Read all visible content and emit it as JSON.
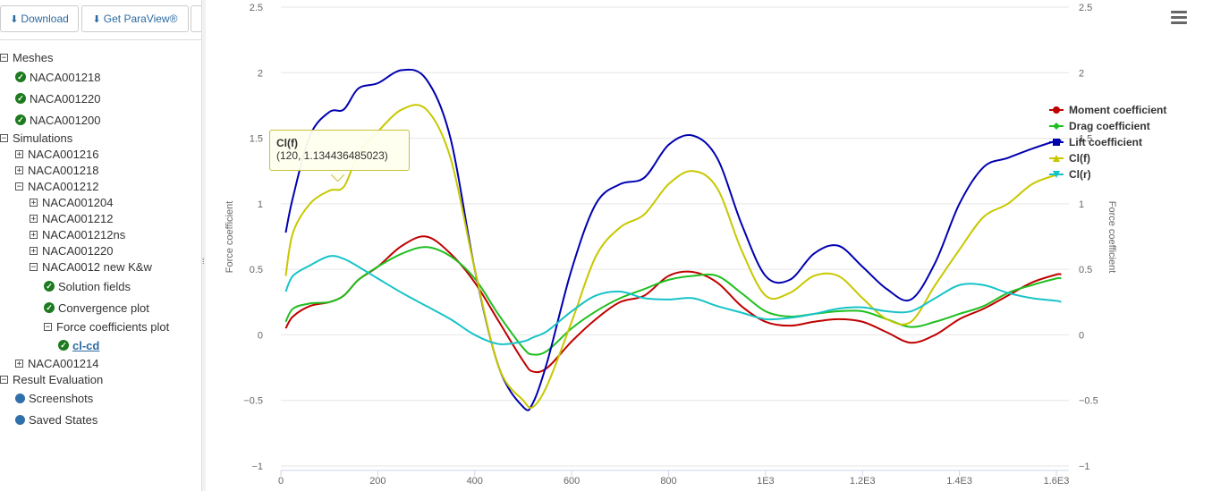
{
  "toolbar": {
    "download_label": "Download",
    "paraview_label": "Get ParaView®"
  },
  "tree": {
    "meshes": "Meshes",
    "mesh_items": [
      "NACA001218",
      "NACA001220",
      "NACA001200"
    ],
    "simulations": "Simulations",
    "sim_items": [
      "NACA001216",
      "NACA001218",
      "NACA001212"
    ],
    "sub_items": [
      "NACA001204",
      "NACA001212",
      "NACA001212ns",
      "NACA001220",
      "NACA0012 new K&w"
    ],
    "solution_fields": "Solution fields",
    "convergence_plot": "Convergence plot",
    "force_coefficients_plot": "Force coefficients plot",
    "selected_leaf": "cl-cd",
    "sim_last": "NACA001214",
    "result_evaluation": "Result Evaluation",
    "screenshots": "Screenshots",
    "saved_states": "Saved States"
  },
  "chart_data": {
    "type": "line",
    "ylabel_left": "Force coefficient",
    "ylabel_right": "Force coefficient",
    "xlim": [
      0,
      1630
    ],
    "ylim": [
      -1,
      2.5
    ],
    "x_ticks": [
      0,
      200,
      400,
      600,
      800,
      1000,
      1200,
      1400,
      1600
    ],
    "x_tick_labels": [
      "0",
      "200",
      "400",
      "600",
      "800",
      "1E3",
      "1.2E3",
      "1.4E3",
      "1.6E3"
    ],
    "y_ticks": [
      -1,
      -0.5,
      0,
      0.5,
      1,
      1.5,
      2,
      2.5
    ],
    "y_tick_labels": [
      "−1",
      "−0.5",
      "0",
      "0.5",
      "1",
      "1.5",
      "2",
      "2.5"
    ],
    "grid": "horizontal",
    "legend_position": "right",
    "x": [
      10,
      25,
      60,
      100,
      130,
      160,
      200,
      250,
      300,
      350,
      400,
      450,
      500,
      520,
      550,
      600,
      650,
      700,
      750,
      800,
      850,
      900,
      950,
      1000,
      1050,
      1100,
      1150,
      1200,
      1250,
      1300,
      1350,
      1400,
      1450,
      1500,
      1550,
      1600,
      1610
    ],
    "series": [
      {
        "name": "Moment coefficient",
        "color": "#c00000",
        "values": [
          0.05,
          0.14,
          0.22,
          0.25,
          0.3,
          0.42,
          0.52,
          0.68,
          0.75,
          0.62,
          0.4,
          0.1,
          -0.2,
          -0.28,
          -0.25,
          -0.05,
          0.12,
          0.25,
          0.3,
          0.45,
          0.48,
          0.4,
          0.22,
          0.1,
          0.07,
          0.1,
          0.12,
          0.1,
          0.02,
          -0.06,
          0.0,
          0.12,
          0.2,
          0.3,
          0.4,
          0.46,
          0.46
        ]
      },
      {
        "name": "Drag coefficient",
        "color": "#1fbf1f",
        "values": [
          0.1,
          0.2,
          0.24,
          0.25,
          0.3,
          0.42,
          0.52,
          0.62,
          0.67,
          0.6,
          0.43,
          0.15,
          -0.1,
          -0.15,
          -0.12,
          0.05,
          0.18,
          0.28,
          0.35,
          0.42,
          0.45,
          0.45,
          0.32,
          0.18,
          0.14,
          0.16,
          0.18,
          0.18,
          0.12,
          0.06,
          0.1,
          0.16,
          0.22,
          0.32,
          0.38,
          0.43,
          0.43
        ]
      },
      {
        "name": "Lift coefficient",
        "color": "#0000b0",
        "values": [
          0.78,
          1.05,
          1.52,
          1.7,
          1.72,
          1.88,
          1.92,
          2.02,
          1.95,
          1.5,
          0.5,
          -0.25,
          -0.55,
          -0.52,
          -0.2,
          0.5,
          1.0,
          1.15,
          1.2,
          1.45,
          1.52,
          1.35,
          0.85,
          0.45,
          0.42,
          0.62,
          0.68,
          0.52,
          0.35,
          0.27,
          0.55,
          1.0,
          1.28,
          1.35,
          1.42,
          1.48,
          1.48
        ]
      },
      {
        "name": "Cl(f)",
        "color": "#c8c800",
        "values": [
          0.45,
          0.78,
          1.0,
          1.1,
          1.13,
          1.38,
          1.55,
          1.72,
          1.72,
          1.35,
          0.5,
          -0.25,
          -0.5,
          -0.55,
          -0.38,
          0.1,
          0.6,
          0.82,
          0.92,
          1.15,
          1.25,
          1.12,
          0.65,
          0.3,
          0.32,
          0.45,
          0.45,
          0.28,
          0.12,
          0.1,
          0.38,
          0.65,
          0.9,
          1.0,
          1.15,
          1.22,
          1.22
        ]
      },
      {
        "name": "Cl(r)",
        "color": "#17c3c8",
        "values": [
          0.33,
          0.45,
          0.53,
          0.6,
          0.58,
          0.52,
          0.43,
          0.32,
          0.22,
          0.12,
          0.0,
          -0.07,
          -0.05,
          -0.02,
          0.03,
          0.18,
          0.3,
          0.33,
          0.28,
          0.27,
          0.28,
          0.22,
          0.17,
          0.12,
          0.13,
          0.16,
          0.2,
          0.21,
          0.18,
          0.18,
          0.28,
          0.38,
          0.38,
          0.32,
          0.28,
          0.26,
          0.25
        ]
      }
    ],
    "tooltip": {
      "series": "Cl(f)",
      "text": "(120, 1.134436485023)"
    }
  }
}
